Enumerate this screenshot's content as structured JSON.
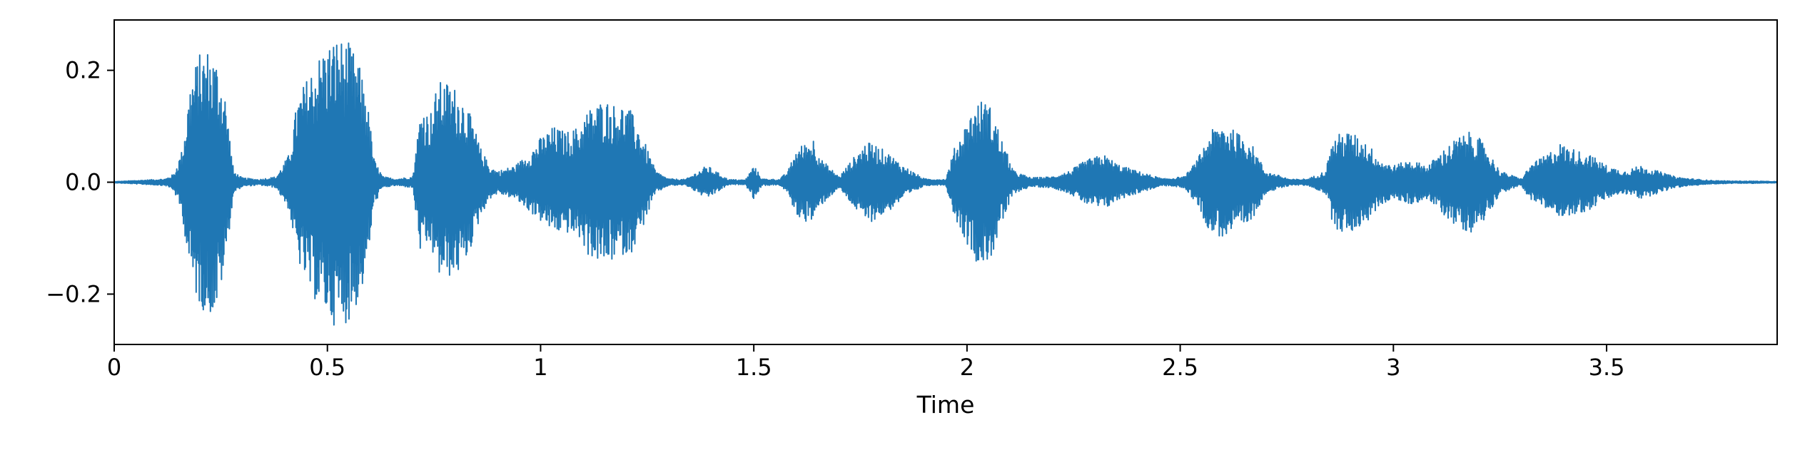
{
  "chart_data": {
    "type": "line",
    "title": "",
    "xlabel": "Time",
    "ylabel": "",
    "xlim": [
      0,
      3.9
    ],
    "ylim": [
      -0.29,
      0.29
    ],
    "grid": false,
    "line_color": "#1f77b4",
    "x_ticks": [
      {
        "value": 0,
        "label": "0"
      },
      {
        "value": 0.5,
        "label": "0.5"
      },
      {
        "value": 1,
        "label": "1"
      },
      {
        "value": 1.5,
        "label": "1.5"
      },
      {
        "value": 2,
        "label": "2"
      },
      {
        "value": 2.5,
        "label": "2.5"
      },
      {
        "value": 3,
        "label": "3"
      },
      {
        "value": 3.5,
        "label": "3.5"
      }
    ],
    "y_ticks": [
      {
        "value": 0.2,
        "label": "0.2"
      },
      {
        "value": 0.0,
        "label": "0.0"
      },
      {
        "value": -0.2,
        "label": "−0.2"
      }
    ],
    "series": [
      {
        "x": [
          0.0,
          0.12,
          0.14,
          0.16,
          0.18,
          0.2,
          0.22,
          0.24,
          0.26,
          0.28,
          0.3,
          0.34,
          0.38,
          0.41,
          0.43,
          0.46,
          0.49,
          0.52,
          0.55,
          0.57,
          0.59,
          0.61,
          0.63,
          0.66,
          0.7,
          0.72,
          0.74,
          0.76,
          0.78,
          0.8,
          0.82,
          0.84,
          0.86,
          0.88,
          0.9,
          0.94,
          0.97,
          1.0,
          1.03,
          1.06,
          1.09,
          1.11,
          1.13,
          1.15,
          1.17,
          1.19,
          1.21,
          1.23,
          1.25,
          1.27,
          1.3,
          1.34,
          1.37,
          1.39,
          1.44,
          1.48,
          1.5,
          1.52,
          1.56,
          1.58,
          1.6,
          1.62,
          1.64,
          1.66,
          1.7,
          1.74,
          1.76,
          1.78,
          1.8,
          1.82,
          1.85,
          1.9,
          1.95,
          1.97,
          2.0,
          2.02,
          2.04,
          2.06,
          2.08,
          2.11,
          2.15,
          2.2,
          2.24,
          2.28,
          2.32,
          2.36,
          2.4,
          2.46,
          2.51,
          2.54,
          2.57,
          2.6,
          2.63,
          2.66,
          2.7,
          2.76,
          2.8,
          2.84,
          2.86,
          2.88,
          2.9,
          2.92,
          2.94,
          2.97,
          3.0,
          3.04,
          3.08,
          3.12,
          3.15,
          3.18,
          3.2,
          3.22,
          3.25,
          3.3,
          3.32,
          3.36,
          3.39,
          3.42,
          3.46,
          3.5,
          3.54,
          3.58,
          3.62,
          3.66,
          3.7,
          3.75,
          3.8,
          3.85,
          3.9
        ],
        "y_max": [
          0.001,
          0.006,
          0.015,
          0.06,
          0.19,
          0.23,
          0.24,
          0.22,
          0.16,
          0.02,
          0.008,
          0.005,
          0.01,
          0.05,
          0.15,
          0.2,
          0.24,
          0.26,
          0.25,
          0.22,
          0.17,
          0.04,
          0.01,
          0.006,
          0.01,
          0.14,
          0.12,
          0.18,
          0.18,
          0.17,
          0.15,
          0.11,
          0.06,
          0.03,
          0.02,
          0.03,
          0.05,
          0.08,
          0.1,
          0.09,
          0.1,
          0.13,
          0.14,
          0.15,
          0.14,
          0.14,
          0.13,
          0.1,
          0.06,
          0.02,
          0.006,
          0.005,
          0.02,
          0.03,
          0.005,
          0.004,
          0.03,
          0.006,
          0.005,
          0.02,
          0.06,
          0.07,
          0.08,
          0.04,
          0.01,
          0.05,
          0.07,
          0.07,
          0.06,
          0.05,
          0.03,
          0.006,
          0.005,
          0.06,
          0.11,
          0.14,
          0.15,
          0.13,
          0.08,
          0.02,
          0.008,
          0.01,
          0.02,
          0.04,
          0.05,
          0.03,
          0.02,
          0.006,
          0.01,
          0.04,
          0.09,
          0.11,
          0.09,
          0.08,
          0.02,
          0.005,
          0.006,
          0.02,
          0.08,
          0.09,
          0.09,
          0.08,
          0.07,
          0.04,
          0.03,
          0.04,
          0.03,
          0.06,
          0.08,
          0.09,
          0.08,
          0.06,
          0.02,
          0.006,
          0.03,
          0.05,
          0.07,
          0.06,
          0.05,
          0.03,
          0.02,
          0.03,
          0.02,
          0.01,
          0.006,
          0.003,
          0.002,
          0.002,
          0.001
        ],
        "y_min": [
          -0.001,
          -0.006,
          -0.015,
          -0.06,
          -0.18,
          -0.22,
          -0.24,
          -0.23,
          -0.15,
          -0.02,
          -0.008,
          -0.005,
          -0.01,
          -0.05,
          -0.14,
          -0.2,
          -0.23,
          -0.26,
          -0.25,
          -0.22,
          -0.17,
          -0.04,
          -0.01,
          -0.006,
          -0.01,
          -0.14,
          -0.11,
          -0.17,
          -0.17,
          -0.17,
          -0.15,
          -0.11,
          -0.06,
          -0.03,
          -0.02,
          -0.03,
          -0.05,
          -0.07,
          -0.09,
          -0.09,
          -0.1,
          -0.13,
          -0.14,
          -0.15,
          -0.14,
          -0.13,
          -0.13,
          -0.1,
          -0.06,
          -0.02,
          -0.006,
          -0.005,
          -0.02,
          -0.03,
          -0.005,
          -0.004,
          -0.03,
          -0.006,
          -0.005,
          -0.02,
          -0.06,
          -0.07,
          -0.07,
          -0.04,
          -0.01,
          -0.05,
          -0.07,
          -0.07,
          -0.06,
          -0.05,
          -0.03,
          -0.006,
          -0.005,
          -0.06,
          -0.11,
          -0.14,
          -0.15,
          -0.13,
          -0.08,
          -0.02,
          -0.008,
          -0.01,
          -0.02,
          -0.04,
          -0.05,
          -0.03,
          -0.02,
          -0.006,
          -0.01,
          -0.04,
          -0.09,
          -0.1,
          -0.09,
          -0.08,
          -0.02,
          -0.005,
          -0.006,
          -0.02,
          -0.08,
          -0.09,
          -0.09,
          -0.08,
          -0.07,
          -0.04,
          -0.03,
          -0.04,
          -0.03,
          -0.06,
          -0.08,
          -0.09,
          -0.08,
          -0.06,
          -0.02,
          -0.006,
          -0.03,
          -0.05,
          -0.06,
          -0.06,
          -0.05,
          -0.03,
          -0.02,
          -0.03,
          -0.02,
          -0.01,
          -0.006,
          -0.003,
          -0.002,
          -0.002,
          -0.001
        ]
      }
    ]
  }
}
